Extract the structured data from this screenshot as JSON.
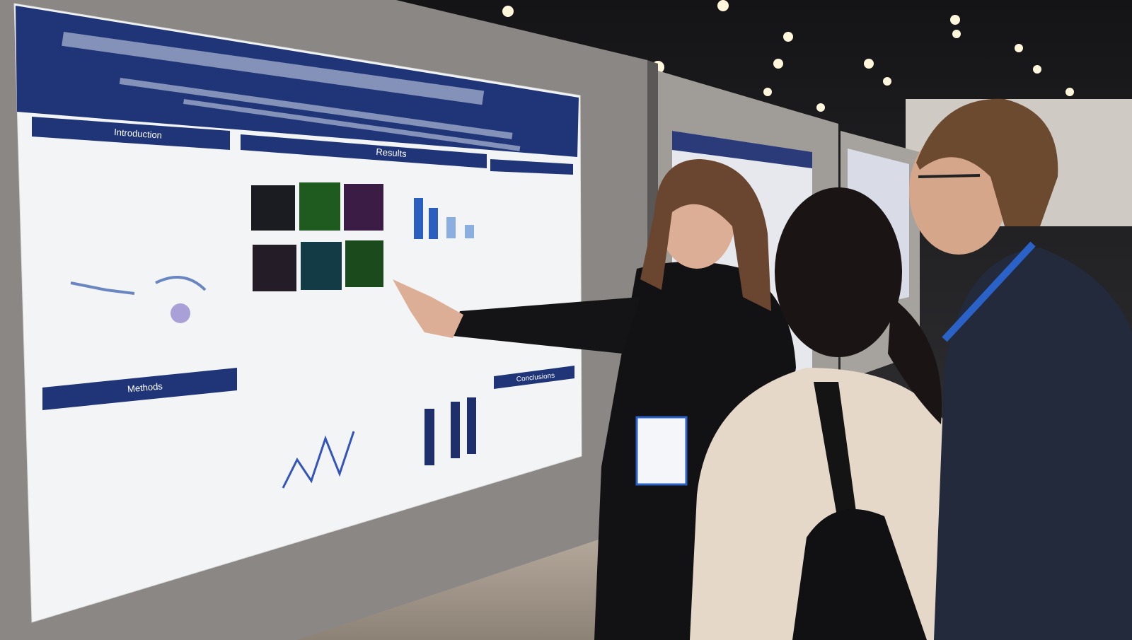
{
  "poster": {
    "sections": [
      {
        "heading": "Introduction"
      },
      {
        "heading": "Results"
      },
      {
        "heading": "Methods"
      },
      {
        "heading": "Conclusions"
      }
    ]
  }
}
